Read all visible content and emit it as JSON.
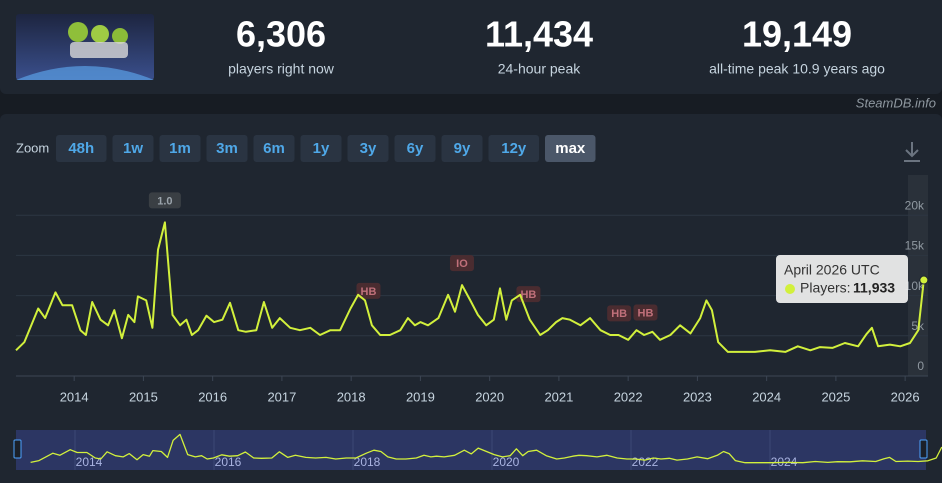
{
  "stats": [
    {
      "value": "6,306",
      "label": "players right now"
    },
    {
      "value": "11,434",
      "label": "24-hour peak"
    },
    {
      "value": "19,149",
      "label": "all-time peak 10.9 years ago"
    }
  ],
  "source": "SteamDB.info",
  "zoom": {
    "label": "Zoom",
    "options": [
      {
        "label": "48h"
      },
      {
        "label": "1w"
      },
      {
        "label": "1m"
      },
      {
        "label": "3m"
      },
      {
        "label": "6m"
      },
      {
        "label": "1y"
      },
      {
        "label": "3y"
      },
      {
        "label": "6y"
      },
      {
        "label": "9y"
      },
      {
        "label": "12y"
      },
      {
        "label": "max",
        "active": true
      }
    ]
  },
  "chart_data": {
    "type": "line",
    "x": [
      2013.16,
      2013.28,
      2013.48,
      2013.58,
      2013.73,
      2013.83,
      2013.97,
      2014.09,
      2014.17,
      2014.26,
      2014.38,
      2014.49,
      2014.58,
      2014.69,
      2014.78,
      2014.87,
      2014.92,
      2015.04,
      2015.13,
      2015.21,
      2015.31,
      2015.42,
      2015.53,
      2015.62,
      2015.7,
      2015.79,
      2015.91,
      2016.02,
      2016.14,
      2016.25,
      2016.37,
      2016.48,
      2016.63,
      2016.74,
      2016.86,
      2016.97,
      2017.12,
      2017.26,
      2017.41,
      2017.55,
      2017.7,
      2017.84,
      2017.99,
      2018.1,
      2018.2,
      2018.3,
      2018.42,
      2018.56,
      2018.71,
      2018.82,
      2018.92,
      2019.0,
      2019.11,
      2019.26,
      2019.4,
      2019.5,
      2019.6,
      2019.72,
      2019.83,
      2019.95,
      2020.06,
      2020.15,
      2020.24,
      2020.32,
      2020.44,
      2020.58,
      2020.73,
      2020.84,
      2020.96,
      2021.05,
      2021.16,
      2021.31,
      2021.45,
      2021.6,
      2021.74,
      2021.86,
      2022.0,
      2022.12,
      2022.23,
      2022.35,
      2022.46,
      2022.61,
      2022.75,
      2022.9,
      2023.04,
      2023.13,
      2023.21,
      2023.3,
      2023.44,
      2023.62,
      2023.83,
      2024.05,
      2024.27,
      2024.45,
      2024.63,
      2024.77,
      2024.95,
      2025.13,
      2025.32,
      2025.44,
      2025.52,
      2025.61,
      2025.78,
      2025.93,
      2026.07,
      2026.19,
      2026.27
    ],
    "series": [
      {
        "name": "Players",
        "color": "#d2f03c",
        "values": [
          3200,
          4200,
          8400,
          7200,
          10400,
          8800,
          8800,
          5700,
          5100,
          9200,
          7000,
          6300,
          8200,
          4700,
          7600,
          6700,
          9900,
          9400,
          6000,
          15700,
          19100,
          7600,
          6300,
          7000,
          5100,
          5700,
          7500,
          6700,
          7000,
          9100,
          5700,
          5500,
          5700,
          9200,
          6000,
          7200,
          6000,
          5700,
          6000,
          5100,
          5700,
          5700,
          8400,
          10100,
          9400,
          6300,
          5100,
          5100,
          5700,
          7200,
          6300,
          6700,
          6300,
          7200,
          10100,
          8000,
          11300,
          9400,
          7600,
          6300,
          7000,
          10900,
          7000,
          9400,
          10100,
          7000,
          5100,
          5700,
          6700,
          7200,
          7000,
          6300,
          7200,
          5700,
          5100,
          5100,
          4500,
          5700,
          5100,
          5500,
          4500,
          5100,
          6300,
          5300,
          7200,
          9400,
          8200,
          4200,
          3000,
          3000,
          3000,
          3200,
          3000,
          3700,
          3200,
          3600,
          3500,
          4100,
          3700,
          5200,
          6000,
          3700,
          3900,
          3700,
          4100,
          5700,
          11933
        ]
      }
    ],
    "xlim": [
      2013.16,
      2026.33
    ],
    "xticks": [
      2014,
      2015,
      2016,
      2017,
      2018,
      2019,
      2020,
      2021,
      2022,
      2023,
      2024,
      2025,
      2026
    ],
    "ylim": [
      0,
      25000
    ],
    "yticks": [
      0,
      {
        "value": 5000,
        "label": "5k"
      },
      {
        "value": 10000,
        "label": "10k"
      },
      {
        "value": 15000,
        "label": "15k"
      },
      {
        "value": 20000,
        "label": "20k"
      }
    ],
    "grid": true,
    "annotations": [
      {
        "label": "1.0",
        "x": 2015.31,
        "color": "#3a3f44"
      },
      {
        "label": "HB",
        "x": 2018.25,
        "color": "#4a2c30"
      },
      {
        "label": "IO",
        "x": 2019.6,
        "color": "#4a2c30"
      },
      {
        "label": "HB",
        "x": 2020.56,
        "color": "#4a2c30"
      },
      {
        "label": "HB",
        "x": 2021.87,
        "color": "#4a2c30"
      },
      {
        "label": "HB",
        "x": 2022.25,
        "color": "#4a2c30"
      }
    ],
    "tooltip": {
      "title": "April 2026 UTC",
      "label": "Players:",
      "value_label": "11,933"
    },
    "navigator_xticks": [
      2014,
      2016,
      2018,
      2020,
      2022,
      2024
    ]
  }
}
